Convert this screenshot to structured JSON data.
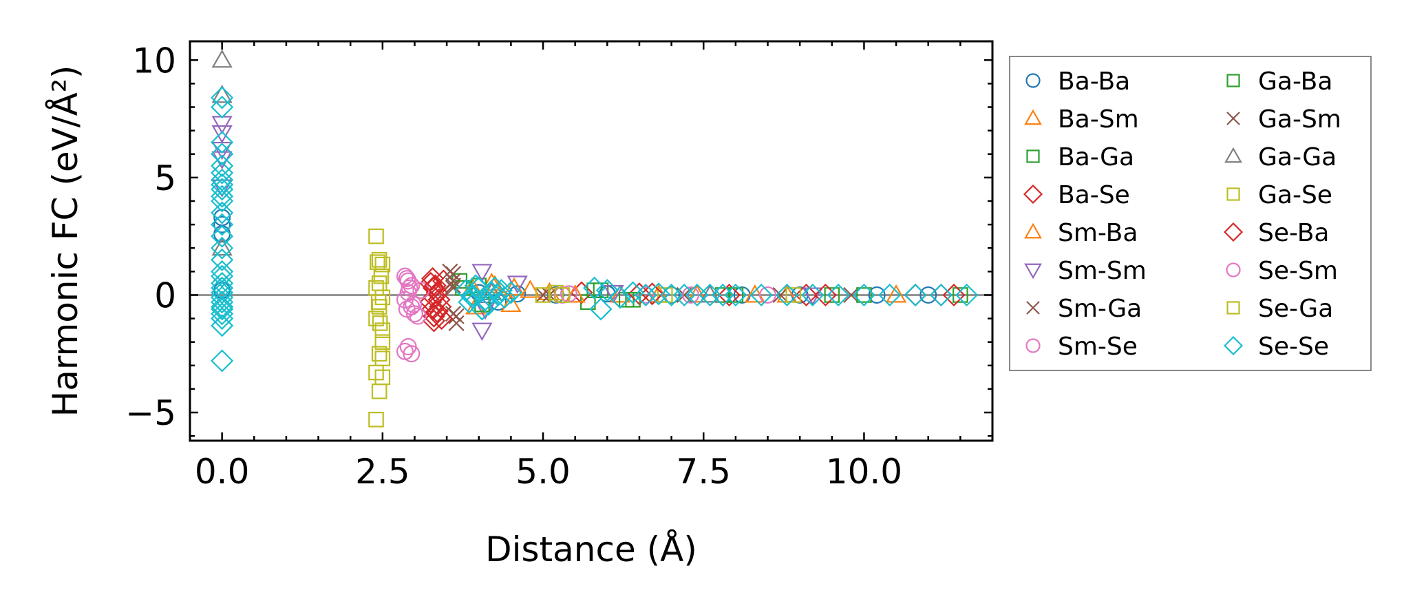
{
  "chart_data": {
    "type": "scatter",
    "title": "",
    "xlabel": "Distance (Å)",
    "ylabel": "Harmonic FC (eV/Å²)",
    "xlim": [
      -0.5,
      12.0
    ],
    "ylim": [
      -6.2,
      10.8
    ],
    "xticks": [
      0.0,
      2.5,
      5.0,
      7.5,
      10.0
    ],
    "xtick_labels": [
      "0.0",
      "2.5",
      "5.0",
      "7.5",
      "10.0"
    ],
    "yticks": [
      -5,
      0,
      5,
      10
    ],
    "ytick_labels": [
      "−5",
      "0",
      "5",
      "10"
    ],
    "zero_line": 0,
    "legend_position": "outside-right",
    "series": [
      {
        "name": "Ba-Ba",
        "marker": "circle",
        "color": "#1f77b4",
        "x": [
          0,
          0,
          0,
          0,
          4.0,
          4.3,
          4.6,
          5.2,
          6.0,
          7.0,
          8.1,
          9.0,
          10.2,
          11.0
        ],
        "y": [
          3.3,
          3.0,
          2.6,
          0.2,
          0.1,
          -0.3,
          0.05,
          0.0,
          0.05,
          0.0,
          0.0,
          0.0,
          0.0,
          0.0
        ]
      },
      {
        "name": "Ba-Sm",
        "marker": "triangle-up",
        "color": "#ff7f0e",
        "x": [
          3.9,
          4.2,
          4.5,
          4.8,
          5.1,
          6.2,
          7.4,
          8.8,
          10.5
        ],
        "y": [
          0.3,
          0.5,
          -0.4,
          0.2,
          0.1,
          0.0,
          0.0,
          0.0,
          0.0
        ]
      },
      {
        "name": "Ba-Ga",
        "marker": "square",
        "color": "#2ca02c",
        "x": [
          3.7,
          4.0,
          5.7,
          5.9,
          6.3,
          7.8,
          9.5,
          11.5
        ],
        "y": [
          0.6,
          0.4,
          -0.3,
          0.2,
          -0.2,
          0.0,
          0.0,
          0.0
        ]
      },
      {
        "name": "Ba-Se",
        "marker": "diamond",
        "color": "#d62728",
        "x": [
          3.25,
          3.3,
          3.35,
          3.3,
          3.25,
          3.4,
          3.35,
          3.3,
          3.45,
          3.3,
          5.6,
          6.5,
          7.9,
          9.1,
          10.8,
          11.4
        ],
        "y": [
          0.5,
          0.3,
          0.1,
          -0.1,
          -0.3,
          -0.5,
          -0.7,
          -0.9,
          0.6,
          -1.1,
          0.1,
          0.05,
          0.0,
          0.0,
          0.0,
          0.0
        ]
      },
      {
        "name": "Sm-Ba",
        "marker": "triangle-up",
        "color": "#ff7f0e",
        "x": [
          3.95,
          4.25,
          4.55,
          5.5,
          6.8,
          8.3
        ],
        "y": [
          -0.5,
          0.4,
          0.3,
          0.0,
          0.0,
          0.0
        ]
      },
      {
        "name": "Sm-Sm",
        "marker": "triangle-down",
        "color": "#9467bd",
        "x": [
          0,
          0,
          0,
          0,
          0,
          4.05,
          4.05,
          4.1,
          4.6,
          6.1,
          9.2
        ],
        "y": [
          7.3,
          6.9,
          6.2,
          5.8,
          4.6,
          1.0,
          -1.5,
          -0.6,
          0.5,
          0.1,
          0.0
        ]
      },
      {
        "name": "Sm-Ga",
        "marker": "x",
        "color": "#8c564b",
        "x": [
          3.6,
          3.6,
          3.6,
          3.65,
          3.6,
          5.0,
          7.2,
          9.8
        ],
        "y": [
          0.9,
          0.6,
          -0.8,
          -1.2,
          0.3,
          0.0,
          0.0,
          0.0
        ]
      },
      {
        "name": "Sm-Se",
        "marker": "circle",
        "color": "#e377c2",
        "x": [
          2.85,
          2.9,
          2.95,
          2.9,
          2.85,
          2.95,
          3.0,
          2.9,
          2.85,
          2.95,
          3.1,
          5.3,
          6.6,
          8.5
        ],
        "y": [
          0.8,
          0.6,
          0.4,
          0.1,
          -0.2,
          -0.5,
          -0.8,
          -2.2,
          -2.4,
          -2.5,
          0.2,
          0.0,
          0.0,
          0.0
        ]
      },
      {
        "name": "Ga-Ba",
        "marker": "square",
        "color": "#2ca02c",
        "x": [
          3.75,
          4.05,
          5.8,
          6.4,
          8.0,
          10.0
        ],
        "y": [
          0.3,
          -0.4,
          0.2,
          -0.2,
          0.0,
          0.0
        ]
      },
      {
        "name": "Ga-Sm",
        "marker": "x",
        "color": "#8c564b",
        "x": [
          3.55,
          3.65,
          3.6,
          5.1,
          8.7
        ],
        "y": [
          1.0,
          -0.9,
          0.4,
          0.0,
          0.0
        ]
      },
      {
        "name": "Ga-Ga",
        "marker": "triangle-up",
        "color": "#7f7f7f",
        "x": [
          0,
          0,
          0,
          4.2,
          7.6
        ],
        "y": [
          10.0,
          8.5,
          2.0,
          0.1,
          0.0
        ]
      },
      {
        "name": "Ga-Se",
        "marker": "square",
        "color": "#bcbd22",
        "x": [
          2.4,
          2.45,
          2.5,
          2.45,
          2.4,
          2.5,
          2.45,
          2.4,
          2.5,
          2.45,
          2.4,
          2.5,
          2.45,
          2.4,
          2.5,
          5.2,
          6.9,
          8.9
        ],
        "y": [
          2.5,
          1.5,
          1.3,
          0.5,
          0.3,
          -0.1,
          -0.5,
          -1.0,
          -1.5,
          -2.5,
          -3.3,
          -3.5,
          -4.1,
          -5.3,
          -2.7,
          0.1,
          0.0,
          0.0
        ]
      },
      {
        "name": "Se-Ba",
        "marker": "diamond",
        "color": "#d62728",
        "x": [
          3.28,
          3.32,
          3.38,
          3.28,
          3.42,
          6.7,
          9.4,
          11.2
        ],
        "y": [
          0.7,
          0.4,
          -0.2,
          -0.6,
          -1.0,
          0.05,
          0.0,
          0.0
        ]
      },
      {
        "name": "Se-Sm",
        "marker": "circle",
        "color": "#e377c2",
        "x": [
          2.88,
          2.92,
          2.98,
          2.88,
          3.05,
          5.4,
          7.3
        ],
        "y": [
          0.7,
          0.3,
          -0.4,
          -0.6,
          -0.9,
          0.05,
          0.0
        ]
      },
      {
        "name": "Se-Ga",
        "marker": "square",
        "color": "#bcbd22",
        "x": [
          2.42,
          2.48,
          2.44,
          2.46,
          2.5,
          5.0,
          5.3
        ],
        "y": [
          1.4,
          0.8,
          -0.3,
          -1.2,
          -2.0,
          0.0,
          0.0
        ]
      },
      {
        "name": "Se-Se",
        "marker": "diamond",
        "color": "#17becf",
        "x": [
          0,
          0,
          0,
          0,
          0,
          0,
          0,
          0,
          0,
          0,
          0,
          0,
          0,
          0,
          0,
          0,
          0,
          0,
          0,
          0,
          0,
          0,
          0,
          0,
          0,
          0,
          0,
          0,
          0,
          3.8,
          3.9,
          4.0,
          4.1,
          4.2,
          4.3,
          4.4,
          4.5,
          3.85,
          3.95,
          4.15,
          4.35,
          3.9,
          4.05,
          4.25,
          5.8,
          5.9,
          6.0,
          6.2,
          6.4,
          6.6,
          6.8,
          7.0,
          7.2,
          7.4,
          7.6,
          7.8,
          8.0,
          8.4,
          8.8,
          9.2,
          9.6,
          10.0,
          10.4,
          10.8,
          11.2,
          11.6
        ],
        "y": [
          8.4,
          8.0,
          6.5,
          6.0,
          5.5,
          5.2,
          4.9,
          4.7,
          4.5,
          4.2,
          4.0,
          3.5,
          3.0,
          2.5,
          2.0,
          1.5,
          1.0,
          0.8,
          0.5,
          0.3,
          0.1,
          -0.1,
          -0.3,
          -0.5,
          -0.6,
          -0.8,
          -1.0,
          -1.3,
          -2.8,
          0.2,
          -0.1,
          0.3,
          -0.2,
          0.1,
          0.0,
          -0.1,
          0.1,
          -0.3,
          0.4,
          -0.4,
          0.2,
          0.0,
          -0.6,
          0.3,
          0.3,
          -0.6,
          0.2,
          -0.1,
          0.1,
          0.0,
          0.05,
          0.0,
          0.0,
          0.0,
          0.0,
          0.0,
          0.0,
          0.0,
          0.0,
          0.0,
          0.0,
          0.0,
          0.0,
          0.0,
          0.0,
          0.0
        ]
      }
    ]
  }
}
